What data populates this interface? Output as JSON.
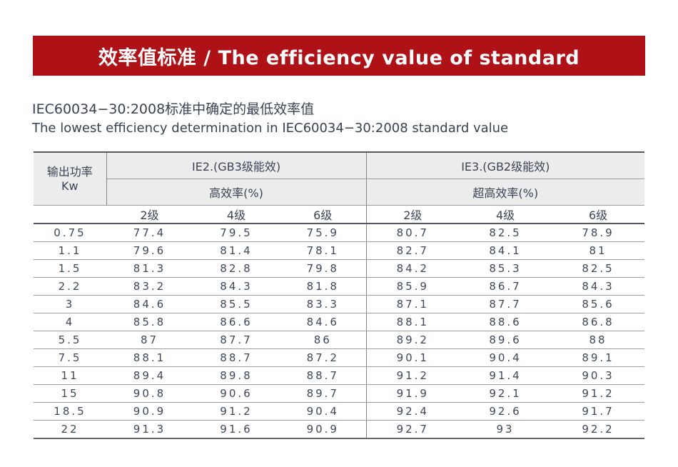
{
  "banner": {
    "title": "效率值标准 / The efficiency value of standard",
    "bg_color": "#AE1116",
    "text_color": "#FFFFFF"
  },
  "subtitle": {
    "line1_zh": "IEC60034−30:2008标准中确定的最低效率值",
    "line2_en": "The lowest efficiency determination in IEC60034−30:2008 standard value"
  },
  "table": {
    "col1_header_line1": "输出功率",
    "col1_header_line2": "Kw",
    "group_headers": [
      {
        "label": "IE2.(GB3级能效)",
        "sub_label": "高效率(%)"
      },
      {
        "label": "IE3.(GB2级能效)",
        "sub_label": "超高效率(%)"
      }
    ],
    "grade_labels": [
      "2级",
      "4级",
      "6级"
    ],
    "rows": [
      {
        "kw": "0.75",
        "ie2": [
          "77.4",
          "79.5",
          "75.9"
        ],
        "ie3": [
          "80.7",
          "82.5",
          "78.9"
        ]
      },
      {
        "kw": "1.1",
        "ie2": [
          "79.6",
          "81.4",
          "78.1"
        ],
        "ie3": [
          "82.7",
          "84.1",
          "81"
        ]
      },
      {
        "kw": "1.5",
        "ie2": [
          "81.3",
          "82.8",
          "79.8"
        ],
        "ie3": [
          "84.2",
          "85.3",
          "82.5"
        ]
      },
      {
        "kw": "2.2",
        "ie2": [
          "83.2",
          "84.3",
          "81.8"
        ],
        "ie3": [
          "85.9",
          "86.7",
          "84.3"
        ]
      },
      {
        "kw": "3",
        "ie2": [
          "84.6",
          "85.5",
          "83.3"
        ],
        "ie3": [
          "87.1",
          "87.7",
          "85.6"
        ]
      },
      {
        "kw": "4",
        "ie2": [
          "85.8",
          "86.6",
          "84.6"
        ],
        "ie3": [
          "88.1",
          "88.6",
          "86.8"
        ]
      },
      {
        "kw": "5.5",
        "ie2": [
          "87",
          "87.7",
          "86"
        ],
        "ie3": [
          "89.2",
          "89.6",
          "88"
        ]
      },
      {
        "kw": "7.5",
        "ie2": [
          "88.1",
          "88.7",
          "87.2"
        ],
        "ie3": [
          "90.1",
          "90.4",
          "89.1"
        ]
      },
      {
        "kw": "11",
        "ie2": [
          "89.4",
          "89.8",
          "88.7"
        ],
        "ie3": [
          "91.2",
          "91.4",
          "90.3"
        ]
      },
      {
        "kw": "15",
        "ie2": [
          "90.8",
          "90.6",
          "89.7"
        ],
        "ie3": [
          "91.9",
          "92.1",
          "91.2"
        ]
      },
      {
        "kw": "18.5",
        "ie2": [
          "90.9",
          "91.2",
          "90.4"
        ],
        "ie3": [
          "92.4",
          "92.6",
          "91.7"
        ]
      },
      {
        "kw": "22",
        "ie2": [
          "91.3",
          "91.6",
          "90.9"
        ],
        "ie3": [
          "92.7",
          "93",
          "92.2"
        ]
      }
    ]
  },
  "colors": {
    "banner_red": "#AE1116",
    "text_dark": "#3C4454",
    "header_bg": "#ECECED",
    "row_line": "#9B9BA1",
    "strong_line": "#54575D"
  }
}
